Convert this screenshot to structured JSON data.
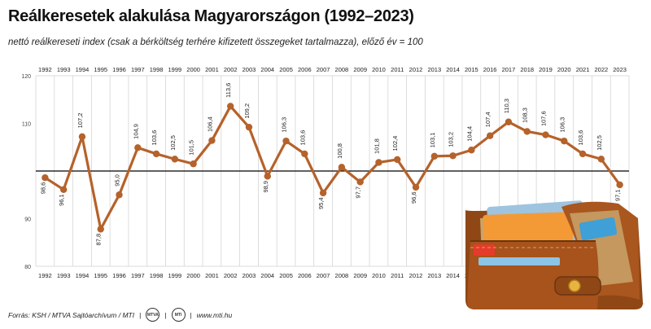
{
  "title": "Reálkeresetek alakulása Magyarországon (1992–2023)",
  "subtitle": "nettó reálkereseti index (csak a bérköltség terhére kifizetett összegeket tartalmazza), előző év = 100",
  "footer": {
    "source": "Forrás: KSH / MTVA Sajtóarchívum / MTI",
    "logo1": "MTVA",
    "logo2": "MTI",
    "website": "www.mti.hu"
  },
  "colors": {
    "line": "#b5622b",
    "grid": "#cfcfcf",
    "reference": "#000000",
    "text": "#222222"
  },
  "chart_data": {
    "type": "line",
    "x": [
      1992,
      1993,
      1994,
      1995,
      1996,
      1997,
      1998,
      1999,
      2000,
      2001,
      2002,
      2003,
      2004,
      2005,
      2006,
      2007,
      2008,
      2009,
      2010,
      2011,
      2012,
      2013,
      2014,
      2015,
      2016,
      2017,
      2018,
      2019,
      2020,
      2021,
      2022,
      2023
    ],
    "values": [
      98.6,
      96.1,
      107.2,
      87.8,
      95.0,
      104.9,
      103.6,
      102.5,
      101.5,
      106.4,
      113.6,
      109.2,
      98.9,
      106.3,
      103.6,
      95.4,
      100.8,
      97.7,
      101.8,
      102.4,
      96.6,
      103.1,
      103.2,
      104.4,
      107.4,
      110.3,
      108.3,
      107.6,
      106.3,
      103.6,
      102.5,
      97.1
    ],
    "value_labels": [
      "98,6",
      "96,1",
      "107,2",
      "87,8",
      "95,0",
      "104,9",
      "103,6",
      "102,5",
      "101,5",
      "106,4",
      "113,6",
      "109,2",
      "98,9",
      "106,3",
      "103,6",
      "95,4",
      "100,8",
      "97,7",
      "101,8",
      "102,4",
      "96,6",
      "103,1",
      "103,2",
      "104,4",
      "107,4",
      "110,3",
      "108,3",
      "107,6",
      "106,3",
      "103,6",
      "102,5",
      "97,1"
    ],
    "label_positions": [
      "below",
      "below",
      "above",
      "below",
      "above",
      "above",
      "above",
      "above",
      "above",
      "above",
      "above",
      "above",
      "below",
      "above",
      "above",
      "below",
      "above",
      "below",
      "above",
      "above",
      "below",
      "above",
      "above",
      "above",
      "above",
      "above",
      "above",
      "above",
      "above",
      "above",
      "above",
      "below"
    ],
    "x_tick_labels": [
      "1992",
      "1993",
      "1994",
      "1995",
      "1996",
      "1997",
      "1998",
      "1999",
      "2000",
      "2001",
      "2002",
      "2003",
      "2004",
      "2005",
      "2006",
      "2007",
      "2008",
      "2009",
      "2010",
      "2011",
      "2012",
      "2013",
      "2014",
      "2015",
      "2016",
      "2017",
      "2018",
      "2019",
      "2020",
      "2021",
      "2022",
      "2023"
    ],
    "y_ticks": [
      80,
      90,
      110,
      120
    ],
    "y_tick_labels": [
      "80",
      "90",
      "110",
      "120"
    ],
    "ylim": [
      80,
      120
    ],
    "reference_line": 100,
    "grid": "vertical"
  }
}
